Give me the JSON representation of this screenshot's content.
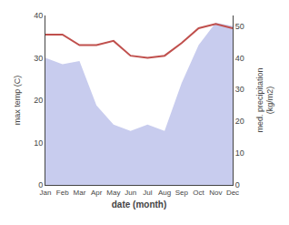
{
  "chart_data": {
    "type": "line",
    "categories": [
      "Jan",
      "Feb",
      "Mar",
      "Apr",
      "May",
      "Jun",
      "Jul",
      "Aug",
      "Sep",
      "Oct",
      "Nov",
      "Dec"
    ],
    "series": [
      {
        "type": "area",
        "axis": "y2",
        "color": "#c8ccee",
        "values": [
          40,
          38,
          39,
          25,
          19,
          17,
          19,
          17,
          32,
          44,
          51,
          50
        ]
      },
      {
        "type": "line",
        "color": "#c0504d",
        "values": [
          35.5,
          35.5,
          33.0,
          33.0,
          34.0,
          30.5,
          30.0,
          30.5,
          33.5,
          37.0,
          38.0,
          37.0
        ]
      }
    ],
    "xlabel": "date (month)",
    "ylabel": "max temp (C)",
    "y2label": "med. precipitation\n(kg/m2)",
    "ylim": [
      0,
      40
    ],
    "yticks": [
      0,
      10,
      20,
      30,
      40
    ],
    "y2lim": [
      0,
      53.3
    ],
    "y2ticks": [
      0,
      10,
      20,
      30,
      40,
      50
    ],
    "grid": false
  }
}
